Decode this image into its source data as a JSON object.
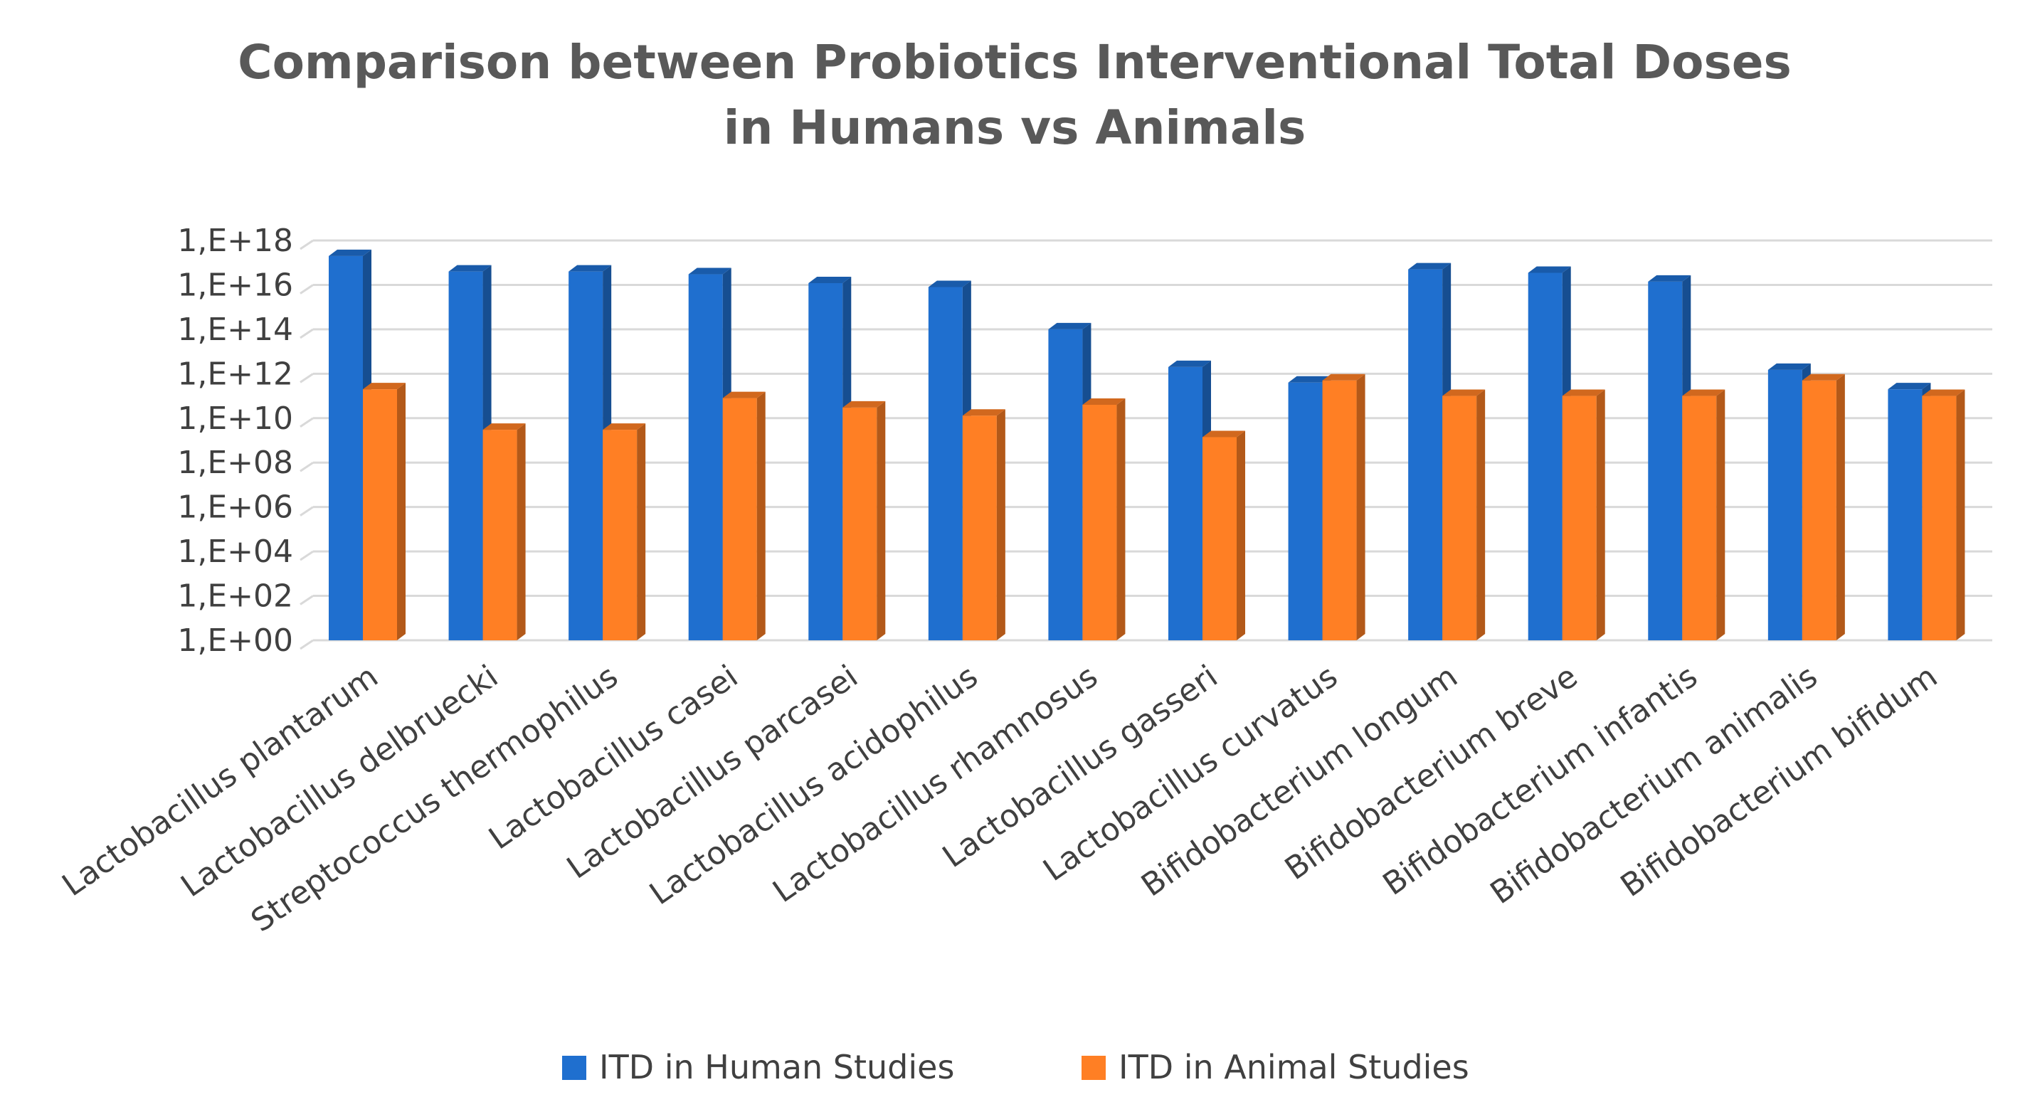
{
  "chart_data": {
    "type": "bar",
    "title_lines": [
      "Comparison between Probiotics Interventional Total Doses",
      "in Humans vs Animals"
    ],
    "xlabel": "",
    "ylabel": "",
    "y_scale": "log10",
    "ylim": [
      1,
      1e+18
    ],
    "y_ticks": [
      "1,E+00",
      "1,E+02",
      "1,E+04",
      "1,E+06",
      "1,E+08",
      "1,E+10",
      "1,E+12",
      "1,E+14",
      "1,E+16",
      "1,E+18"
    ],
    "grid": true,
    "legend_position": "bottom",
    "categories": [
      "Lactobacillus plantarum",
      "Lactobacillus delbruecki",
      "Streptococcus thermophilus",
      "Lactobacillus casei",
      "Lactobacillus parcasei",
      "Lactobacillus acidophilus",
      "Lactobacillus rhamnosus",
      "Lactobacillus gasseri",
      "Lactobacillus curvatus",
      "Bifidobacterium longum",
      "Bifidobacterium breve",
      "Bifidobacterium infantis",
      "Bifidobacterium animalis",
      "Bifidobacterium bifidum"
    ],
    "series": [
      {
        "name": "ITD in Human Studies",
        "color": "#1f6fcf",
        "values": [
          2e+17,
          4e+16,
          4e+16,
          3e+16,
          1.2e+16,
          8000000000000000.0,
          100000000000000.0,
          2000000000000.0,
          400000000000.0,
          5e+16,
          3.5e+16,
          1.4e+16,
          1500000000000.0,
          200000000000.0
        ]
      },
      {
        "name": "ITD in Animal Studies",
        "color": "#ff7f24",
        "values": [
          200000000000.0,
          3000000000.0,
          3000000000.0,
          80000000000.0,
          30000000000.0,
          13000000000.0,
          40000000000.0,
          1400000000.0,
          500000000000.0,
          100000000000.0,
          100000000000.0,
          100000000000.0,
          500000000000.0,
          100000000000.0
        ]
      }
    ]
  }
}
